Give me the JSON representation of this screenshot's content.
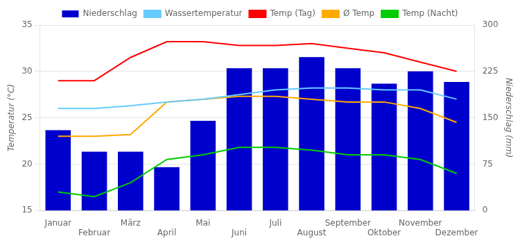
{
  "chart_data": {
    "type": "bar",
    "categories": [
      "Januar",
      "Februar",
      "März",
      "April",
      "Mai",
      "Juni",
      "Juli",
      "August",
      "September",
      "Oktober",
      "November",
      "Dezember"
    ],
    "series": [
      {
        "name": "Niederschlag",
        "type": "bar",
        "axis": "y2",
        "color": "#0000cc",
        "values": [
          130,
          95,
          95,
          70,
          145,
          230,
          230,
          248,
          230,
          205,
          225,
          208
        ]
      },
      {
        "name": "Wassertemperatur",
        "type": "line",
        "color": "#66ccff",
        "values": [
          26.0,
          26.0,
          26.3,
          26.7,
          27.0,
          27.5,
          28.0,
          28.2,
          28.2,
          28.0,
          28.0,
          27.0
        ]
      },
      {
        "name": "Temp (Tag)",
        "type": "line",
        "color": "#ff0000",
        "values": [
          29.0,
          29.0,
          31.5,
          33.2,
          33.2,
          32.8,
          32.8,
          33.0,
          32.5,
          32.0,
          31.0,
          30.0
        ]
      },
      {
        "name": "Ø Temp",
        "type": "line",
        "color": "#ffaa00",
        "values": [
          23.0,
          23.0,
          23.2,
          26.7,
          27.0,
          27.3,
          27.3,
          27.0,
          26.7,
          26.7,
          26.0,
          24.5
        ]
      },
      {
        "name": "Temp (Nacht)",
        "type": "line",
        "color": "#00cc00",
        "values": [
          17.0,
          16.5,
          18.0,
          20.5,
          21.0,
          21.8,
          21.8,
          21.5,
          21.0,
          21.0,
          20.5,
          19.0
        ]
      }
    ],
    "ylabel": "Temperatur (°C)",
    "y2label": "Niederschlag (mm)",
    "ylim": [
      15,
      35
    ],
    "yticks": [
      15,
      20,
      25,
      30,
      35
    ],
    "y2lim": [
      0,
      300
    ],
    "y2ticks": [
      0,
      75,
      150,
      225,
      300
    ],
    "grid": true,
    "legend": "top"
  }
}
